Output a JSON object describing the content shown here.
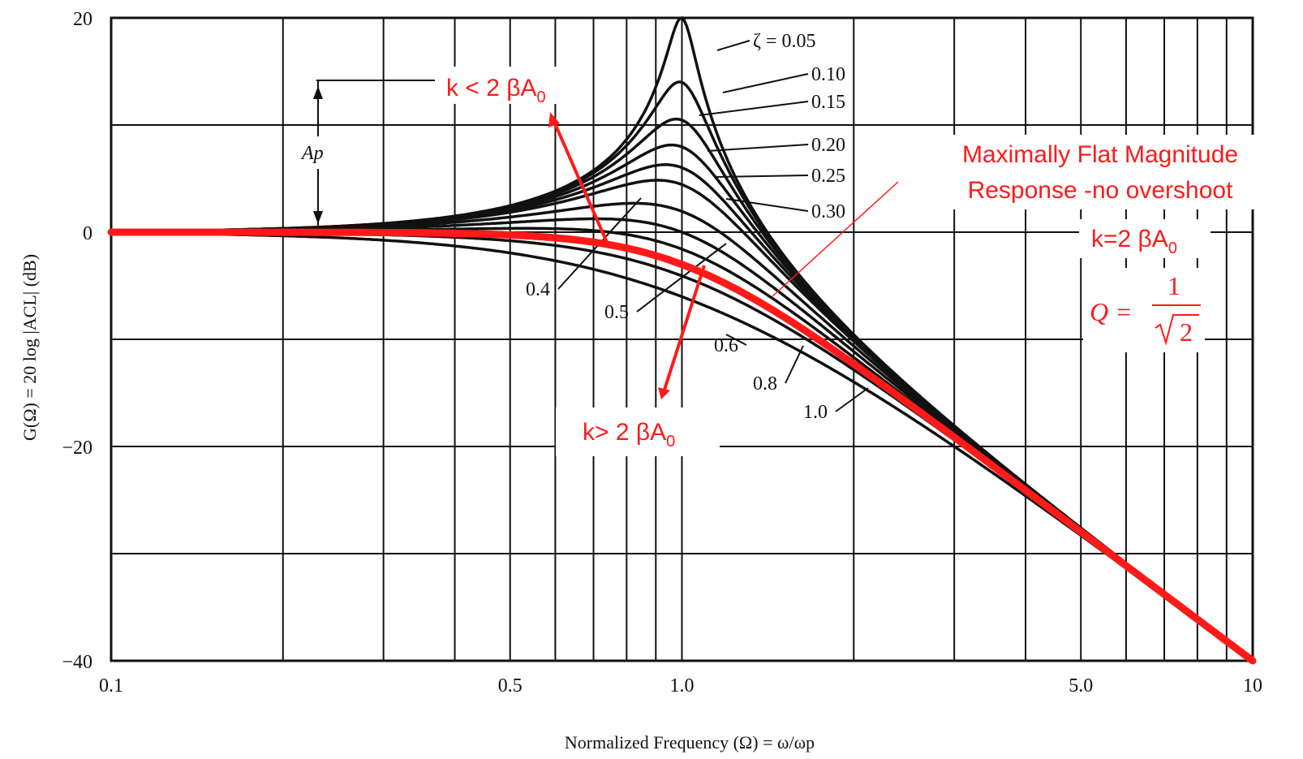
{
  "chart_data": {
    "type": "line",
    "xscale": "log",
    "xlim": [
      0.1,
      10
    ],
    "ylim": [
      -40,
      20
    ],
    "grid": true,
    "x_ticks": [
      {
        "value": 0.1,
        "label": "0.1"
      },
      {
        "value": 0.5,
        "label": "0.5"
      },
      {
        "value": 1.0,
        "label": "1.0"
      },
      {
        "value": 5.0,
        "label": "5.0"
      },
      {
        "value": 10,
        "label": "10"
      }
    ],
    "y_ticks": [
      {
        "value": 20,
        "label": "20"
      },
      {
        "value": 0,
        "label": "0"
      },
      {
        "value": -20,
        "label": "−20"
      },
      {
        "value": -40,
        "label": "−40"
      }
    ],
    "xlabel": "Normalized Frequency (Ω) = ω/ωp",
    "ylabel": "G(Ω) = 20 log |ACL| (dB)",
    "series": [
      {
        "name": "ζ = 0.05",
        "zeta": 0.05
      },
      {
        "name": "0.10",
        "zeta": 0.1
      },
      {
        "name": "0.15",
        "zeta": 0.15
      },
      {
        "name": "0.20",
        "zeta": 0.2
      },
      {
        "name": "0.25",
        "zeta": 0.25
      },
      {
        "name": "0.30",
        "zeta": 0.3
      },
      {
        "name": "0.4",
        "zeta": 0.4
      },
      {
        "name": "0.5",
        "zeta": 0.5
      },
      {
        "name": "0.6",
        "zeta": 0.6
      },
      {
        "name": "0.8",
        "zeta": 0.8
      },
      {
        "name": "1.0",
        "zeta": 1.0
      }
    ],
    "highlight_series": {
      "zeta": 0.7071,
      "color": "#ff1a1a"
    },
    "peak_marker": {
      "label": "Ap",
      "from_db": 0,
      "to_db": 14
    }
  },
  "annotations": {
    "k_less_prefix": "k < 2 βA",
    "k_less_sub": "0",
    "k_greater_prefix": "k> 2 βA",
    "k_greater_sub": "0",
    "flat_line1": "Maximally Flat Magnitude",
    "flat_line2": "Response -no overshoot",
    "k_equal_prefix": "k=2 βA",
    "k_equal_sub": "0",
    "q_lhs": "Q =",
    "q_num": "1",
    "q_den": "2"
  },
  "colors": {
    "curve": "#111111",
    "highlight": "#ff1a1a",
    "grid": "#111111"
  }
}
